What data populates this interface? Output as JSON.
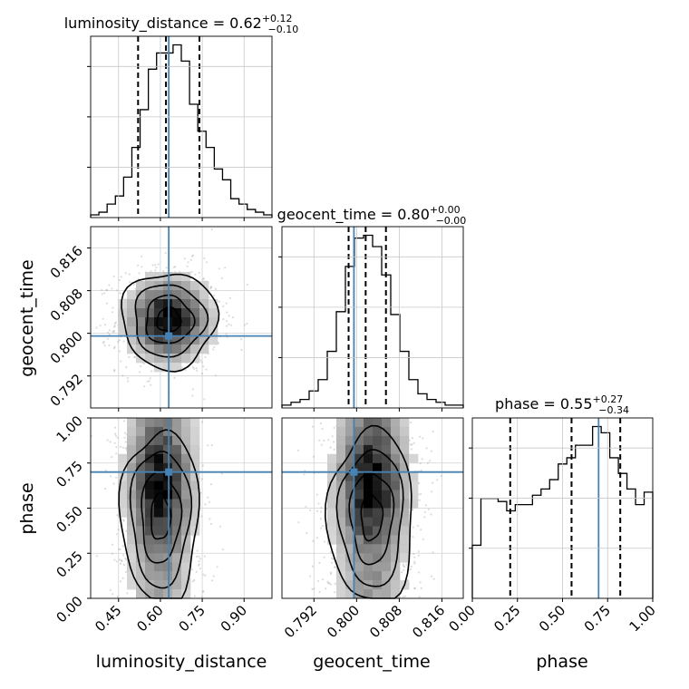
{
  "chart_data": {
    "type": "corner",
    "truth_color": "#4682b4",
    "parameters": [
      {
        "name": "luminosity_distance",
        "range": [
          0.35,
          1.0
        ],
        "ticks": [
          0.45,
          0.6,
          0.75,
          0.9
        ],
        "tick_labels": [
          "0.45",
          "0.60",
          "0.75",
          "0.90"
        ],
        "truth": 0.63,
        "quantiles": [
          0.52,
          0.62,
          0.74
        ]
      },
      {
        "name": "geocent_time",
        "range": [
          0.786,
          0.82
        ],
        "ticks": [
          0.792,
          0.8,
          0.808,
          0.816
        ],
        "tick_labels": [
          "0.792",
          "0.800",
          "0.808",
          "0.816"
        ],
        "truth": 0.7995,
        "quantiles": [
          0.7985,
          0.8017,
          0.8055
        ]
      },
      {
        "name": "phase",
        "range": [
          0.0,
          1.0
        ],
        "ticks": [
          0.0,
          0.25,
          0.5,
          0.75,
          1.0
        ],
        "tick_labels": [
          "0.00",
          "0.25",
          "0.50",
          "0.75",
          "1.00"
        ],
        "truth": 0.7,
        "quantiles": [
          0.21,
          0.55,
          0.82
        ]
      }
    ],
    "titles": [
      {
        "text": "luminosity_distance = 0.62",
        "sup": "+0.12",
        "sub": "−0.10"
      },
      {
        "text": "geocent_time = 0.80",
        "sup": "+0.00",
        "sub": "−0.00"
      },
      {
        "text": "phase = 0.55",
        "sup": "+0.27",
        "sub": "−0.34"
      }
    ],
    "hist_lumdist": [
      1,
      2,
      5,
      8,
      15,
      26,
      40,
      55,
      61,
      61,
      64,
      58,
      42,
      32,
      26,
      18,
      14,
      7,
      5,
      3,
      2,
      1
    ],
    "hist_geotime": [
      1,
      2,
      3,
      6,
      10,
      20,
      34,
      50,
      60,
      61,
      57,
      47,
      33,
      20,
      10,
      5,
      3,
      2,
      1,
      1
    ],
    "hist_phase": [
      17,
      32,
      32,
      31,
      28,
      30,
      30,
      33,
      35,
      38,
      43,
      45,
      49,
      49,
      55,
      53,
      45,
      40,
      35,
      30,
      34
    ],
    "scatter_lumdist_geotime": {
      "center": [
        0.63,
        0.8025
      ],
      "sigma": [
        0.085,
        0.0045
      ]
    },
    "scatter_lumdist_phase": {
      "center": [
        0.6,
        0.55
      ],
      "sigma": [
        0.07,
        0.3
      ]
    },
    "scatter_geotime_phase": {
      "center": [
        0.8028,
        0.55
      ],
      "sigma": [
        0.004,
        0.3
      ]
    }
  }
}
